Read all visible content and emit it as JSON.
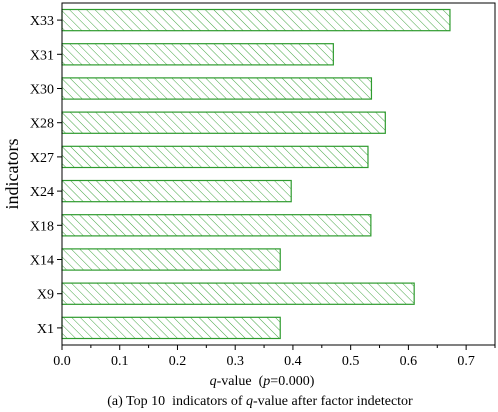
{
  "chart_data": {
    "type": "bar",
    "orientation": "horizontal",
    "categories": [
      "X1",
      "X9",
      "X14",
      "X18",
      "X24",
      "X27",
      "X28",
      "X30",
      "X31",
      "X33"
    ],
    "values": [
      0.378,
      0.61,
      0.378,
      0.535,
      0.397,
      0.53,
      0.56,
      0.536,
      0.47,
      0.672
    ],
    "ylabel": "indicators",
    "xlabel": {
      "italic_var": "q",
      "suffix": "-value  (",
      "p_var": "p",
      "p_value": "=0.000)"
    },
    "caption": {
      "prefix": "(a) Top 10  indicators of ",
      "italic_var": "q",
      "suffix": "-value after factor indetector"
    },
    "xlim": [
      0,
      0.75
    ],
    "xticks": [
      "0.0",
      "0.1",
      "0.2",
      "0.3",
      "0.4",
      "0.5",
      "0.6",
      "0.7"
    ],
    "bar_fill": "hatched",
    "bar_color": "#2e9b2e",
    "grid": false,
    "legend": "none"
  }
}
